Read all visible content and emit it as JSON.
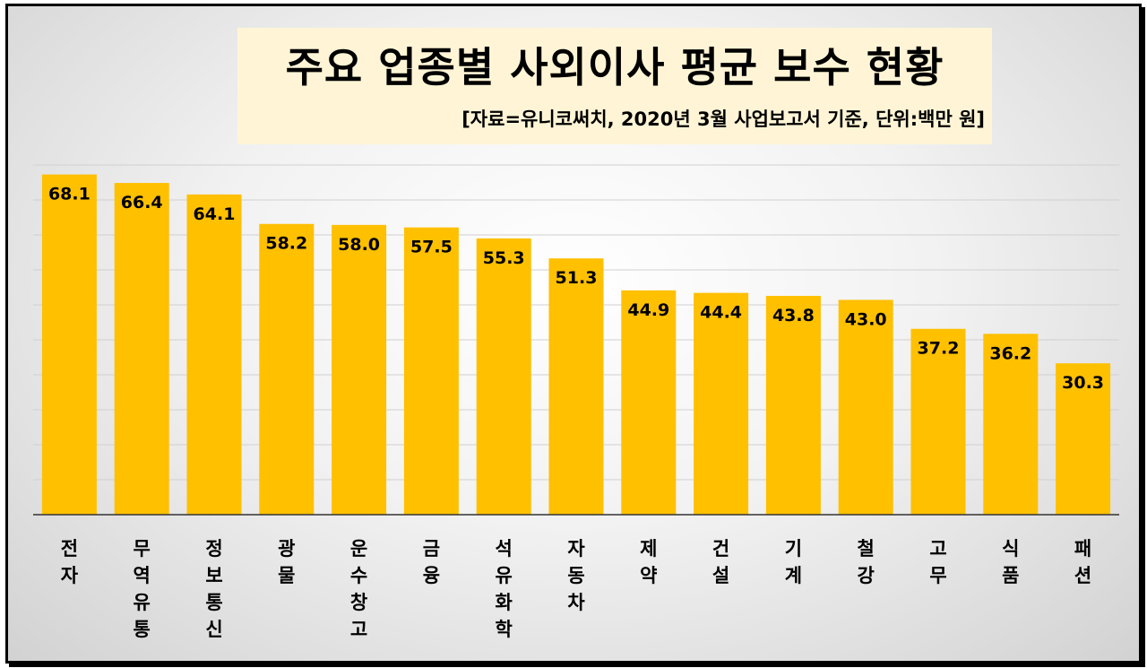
{
  "chart_data": {
    "type": "bar",
    "title": "주요 업종별 사외이사 평균 보수 현황",
    "subtitle": "[자료=유니코써치, 2020년 3월 사업보고서 기준, 단위:백만 원]",
    "categories": [
      "전자",
      "무역유통",
      "정보통신",
      "광물",
      "운수창고",
      "금융",
      "석유화학",
      "자동차",
      "제약",
      "건설",
      "기계",
      "철강",
      "고무",
      "식품",
      "패션"
    ],
    "values": [
      68.1,
      66.4,
      64.1,
      58.2,
      58.0,
      57.5,
      55.3,
      51.3,
      44.9,
      44.4,
      43.8,
      43.0,
      37.2,
      36.2,
      30.3
    ],
    "value_labels": [
      "68.1",
      "66.4",
      "64.1",
      "58.2",
      "58.0",
      "57.5",
      "55.3",
      "51.3",
      "44.9",
      "44.4",
      "43.8",
      "43.0",
      "37.2",
      "36.2",
      "30.3"
    ],
    "ylim": [
      0,
      70
    ],
    "grid": true,
    "colors": {
      "bar": "#FFC000",
      "title_bg": "#FFF5D6",
      "frame": "#000000"
    }
  }
}
